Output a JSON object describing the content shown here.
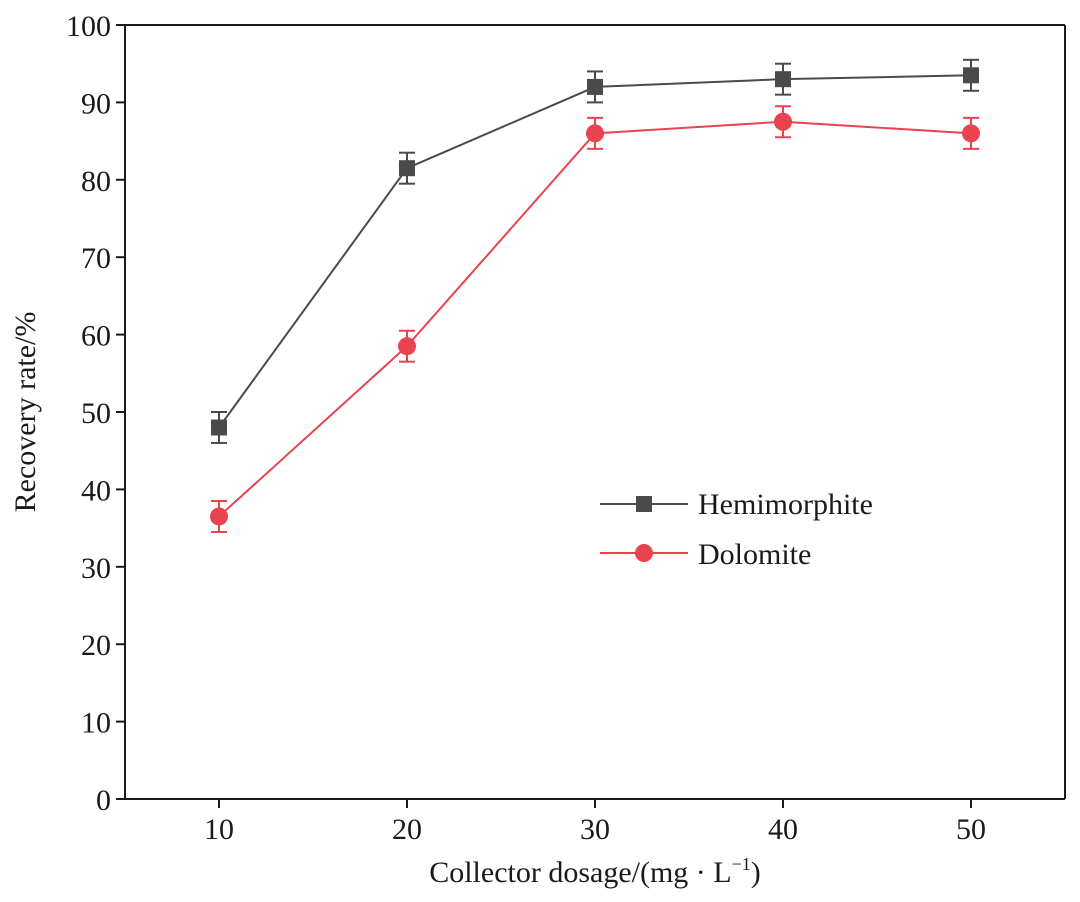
{
  "chart_data": {
    "type": "line",
    "title": "",
    "xlabel": "Collector dosage/(mg · L",
    "xlabel_sup": "−1",
    "xlabel_close": ")",
    "ylabel": "Recovery rate/%",
    "x": [
      10,
      20,
      30,
      40,
      50
    ],
    "xlim": [
      5,
      55
    ],
    "ylim": [
      0,
      100
    ],
    "xticks": [
      "10",
      "20",
      "30",
      "40",
      "50"
    ],
    "yticks": [
      "0",
      "10",
      "20",
      "30",
      "40",
      "50",
      "60",
      "70",
      "80",
      "90",
      "100"
    ],
    "grid": false,
    "legend_position": "center-right",
    "series": [
      {
        "name": "Hemimorphite",
        "marker": "square",
        "color": "#4a4a4a",
        "values": [
          48,
          81.5,
          92,
          93,
          93.5
        ],
        "errors": [
          2,
          2,
          2,
          2,
          2
        ]
      },
      {
        "name": "Dolomite",
        "marker": "circle",
        "color": "#e8434f",
        "values": [
          36.5,
          58.5,
          86,
          87.5,
          86
        ],
        "errors": [
          2,
          2,
          2,
          2,
          2
        ]
      }
    ]
  }
}
